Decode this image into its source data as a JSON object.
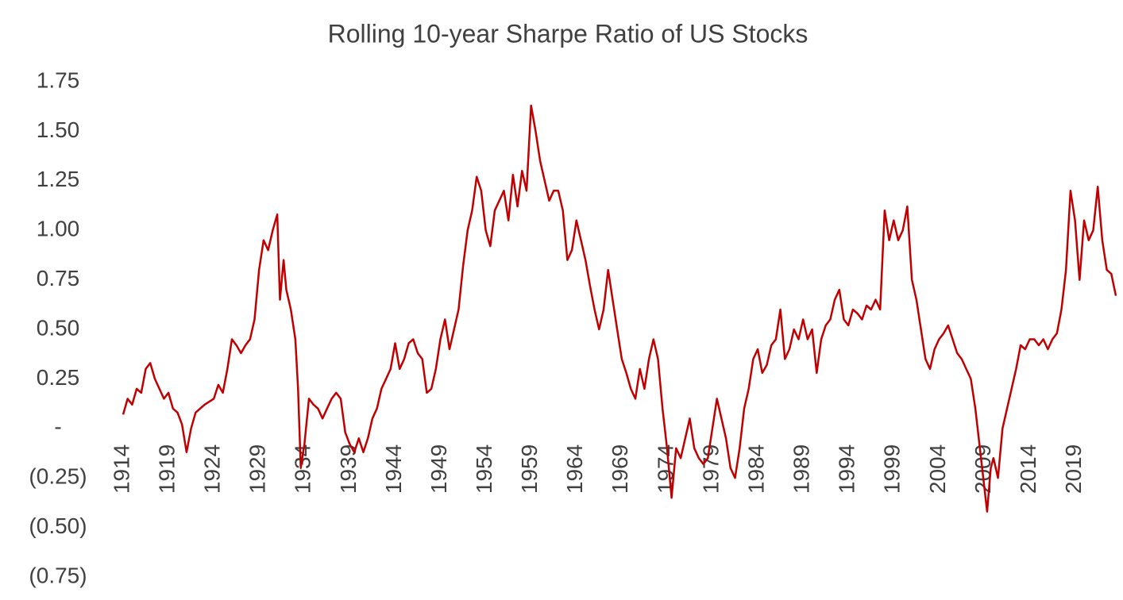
{
  "chart_data": {
    "type": "line",
    "title": "Rolling 10-year Sharpe Ratio of US Stocks",
    "color": "#c00000",
    "xlim": [
      1914,
      2023.5
    ],
    "xticks": [
      1914,
      1919,
      1924,
      1929,
      1934,
      1939,
      1944,
      1949,
      1954,
      1959,
      1964,
      1969,
      1974,
      1979,
      1984,
      1989,
      1994,
      1999,
      2004,
      2009,
      2014,
      2019
    ],
    "ylim": [
      -0.75,
      1.75
    ],
    "yticks": [
      1.75,
      {
        "value": 1.5,
        "label": "1.50"
      },
      1.25,
      {
        "value": 1.0,
        "label": "1.00"
      },
      0.75,
      {
        "value": 0.5,
        "label": "0.50"
      },
      0.25,
      {
        "value": 0,
        "label": "-"
      },
      {
        "value": -0.25,
        "label": "(0.25)"
      },
      {
        "value": -0.5,
        "label": "(0.50)"
      },
      {
        "value": -0.75,
        "label": "(0.75)"
      }
    ],
    "x": [
      1914,
      1914.5,
      1915,
      1915.5,
      1916,
      1916.5,
      1917,
      1917.5,
      1918,
      1918.5,
      1919,
      1919.5,
      1920,
      1920.5,
      1921,
      1921.5,
      1922,
      1922.5,
      1923,
      1924,
      1924.5,
      1925,
      1925.5,
      1926,
      1926.5,
      1927,
      1927.5,
      1928,
      1928.5,
      1929,
      1929.5,
      1930,
      1930.5,
      1931,
      1931.3,
      1931.7,
      1932,
      1932.5,
      1933,
      1933.3,
      1933.6,
      1934,
      1934.5,
      1935,
      1935.5,
      1936,
      1936.5,
      1937,
      1937.5,
      1938,
      1938.5,
      1939,
      1939.5,
      1940,
      1940.5,
      1941,
      1941.5,
      1942,
      1942.5,
      1943,
      1943.5,
      1944,
      1944.5,
      1945,
      1945.5,
      1946,
      1946.5,
      1947,
      1947.5,
      1948,
      1948.5,
      1949,
      1949.5,
      1950,
      1950.5,
      1951,
      1951.5,
      1952,
      1952.5,
      1953,
      1953.5,
      1954,
      1954.5,
      1955,
      1955.5,
      1956,
      1956.5,
      1957,
      1957.5,
      1958,
      1958.5,
      1959,
      1959.5,
      1960,
      1960.5,
      1961,
      1961.5,
      1962,
      1962.5,
      1963,
      1963.5,
      1964,
      1964.5,
      1965,
      1965.5,
      1966,
      1966.5,
      1967,
      1967.5,
      1968,
      1968.5,
      1969,
      1969.5,
      1970,
      1970.5,
      1971,
      1971.5,
      1972,
      1972.5,
      1973,
      1973.5,
      1974,
      1974.5,
      1975,
      1975.5,
      1976,
      1976.5,
      1977,
      1977.5,
      1978,
      1978.5,
      1979,
      1979.5,
      1980,
      1980.5,
      1981,
      1981.5,
      1982,
      1982.5,
      1983,
      1983.5,
      1984,
      1984.5,
      1985,
      1985.5,
      1986,
      1986.5,
      1987,
      1987.5,
      1988,
      1988.5,
      1989,
      1989.5,
      1990,
      1990.5,
      1991,
      1991.5,
      1992,
      1992.5,
      1993,
      1993.5,
      1994,
      1994.5,
      1995,
      1995.5,
      1996,
      1996.5,
      1997,
      1997.5,
      1998,
      1998.5,
      1999,
      1999.5,
      2000,
      2000.5,
      2001,
      2001.5,
      2002,
      2002.5,
      2003,
      2003.5,
      2004,
      2004.5,
      2005,
      2005.5,
      2006,
      2006.5,
      2007,
      2007.5,
      2008,
      2008.5,
      2009,
      2009.3,
      2009.7,
      2010,
      2010.5,
      2011,
      2011.5,
      2012,
      2012.5,
      2013,
      2013.5,
      2014,
      2014.5,
      2015,
      2015.5,
      2016,
      2016.5,
      2017,
      2017.5,
      2018,
      2018.5,
      2019,
      2019.5,
      2020,
      2020.5,
      2021,
      2021.5,
      2022,
      2022.5,
      2023,
      2023.5
    ],
    "values": [
      0.07,
      0.15,
      0.12,
      0.2,
      0.18,
      0.3,
      0.33,
      0.25,
      0.2,
      0.15,
      0.18,
      0.1,
      0.08,
      0.02,
      -0.12,
      0.0,
      0.08,
      0.1,
      0.12,
      0.15,
      0.22,
      0.18,
      0.3,
      0.45,
      0.42,
      0.38,
      0.42,
      0.45,
      0.55,
      0.8,
      0.95,
      0.9,
      1.0,
      1.08,
      0.65,
      0.85,
      0.7,
      0.6,
      0.45,
      0.2,
      -0.2,
      -0.08,
      0.15,
      0.12,
      0.1,
      0.05,
      0.1,
      0.15,
      0.18,
      0.15,
      -0.02,
      -0.08,
      -0.12,
      -0.05,
      -0.12,
      -0.05,
      0.05,
      0.1,
      0.2,
      0.25,
      0.3,
      0.43,
      0.3,
      0.35,
      0.43,
      0.45,
      0.38,
      0.35,
      0.18,
      0.2,
      0.3,
      0.45,
      0.55,
      0.4,
      0.5,
      0.6,
      0.82,
      1.0,
      1.1,
      1.27,
      1.2,
      1.0,
      0.92,
      1.1,
      1.15,
      1.2,
      1.05,
      1.28,
      1.12,
      1.3,
      1.2,
      1.63,
      1.5,
      1.35,
      1.25,
      1.15,
      1.2,
      1.2,
      1.1,
      0.85,
      0.9,
      1.05,
      0.95,
      0.85,
      0.72,
      0.6,
      0.5,
      0.6,
      0.8,
      0.65,
      0.5,
      0.35,
      0.28,
      0.2,
      0.15,
      0.3,
      0.2,
      0.35,
      0.45,
      0.35,
      0.1,
      -0.1,
      -0.35,
      -0.1,
      -0.15,
      -0.05,
      0.05,
      -0.1,
      -0.15,
      -0.18,
      -0.15,
      0.0,
      0.15,
      0.05,
      -0.05,
      -0.2,
      -0.25,
      -0.1,
      0.1,
      0.2,
      0.35,
      0.4,
      0.28,
      0.32,
      0.42,
      0.45,
      0.6,
      0.35,
      0.4,
      0.5,
      0.45,
      0.55,
      0.45,
      0.5,
      0.28,
      0.45,
      0.52,
      0.55,
      0.65,
      0.7,
      0.55,
      0.52,
      0.6,
      0.58,
      0.55,
      0.62,
      0.6,
      0.65,
      0.6,
      1.1,
      0.95,
      1.05,
      0.95,
      1.0,
      1.12,
      0.75,
      0.65,
      0.5,
      0.35,
      0.3,
      0.4,
      0.45,
      0.48,
      0.52,
      0.45,
      0.38,
      0.35,
      0.3,
      0.25,
      0.1,
      -0.1,
      -0.3,
      -0.42,
      -0.2,
      -0.15,
      -0.25,
      0.0,
      0.1,
      0.2,
      0.3,
      0.42,
      0.4,
      0.45,
      0.45,
      0.42,
      0.45,
      0.4,
      0.45,
      0.48,
      0.6,
      0.8,
      1.2,
      1.05,
      0.75,
      1.05,
      0.95,
      1.0,
      1.22,
      0.95,
      0.8,
      0.78,
      0.67
    ]
  }
}
